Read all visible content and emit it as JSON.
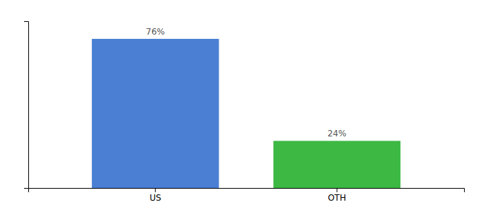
{
  "chart_data": {
    "type": "bar",
    "categories": [
      "US",
      "OTH"
    ],
    "values": [
      76,
      24
    ],
    "value_labels": [
      "76%",
      "24%"
    ],
    "colors": [
      "#4a7fd4",
      "#3cb843"
    ],
    "ylim": [
      0,
      85
    ],
    "data_labels": true,
    "tick_labels": "x",
    "grid": false
  }
}
